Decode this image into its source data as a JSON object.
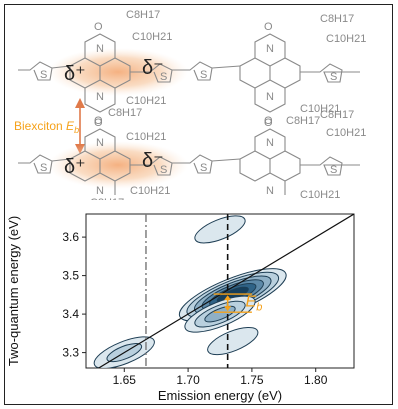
{
  "figure": {
    "top_panel": {
      "charge_plus": "δ⁺",
      "charge_minus": "δ⁻",
      "biexciton_label": "Biexciton",
      "biexciton_symbol": "E",
      "biexciton_subscript": "b",
      "chain_labels": [
        "C8H17",
        "C10H21"
      ],
      "atom_labels": [
        "O",
        "N",
        "S"
      ]
    },
    "colors": {
      "accent_orange": "#f5a21b",
      "backbone_gray": "#8a8a8a",
      "contour_dark": "#1f4f6e",
      "contour_light": "#dbe7ee"
    }
  },
  "chart_data": {
    "type": "contour",
    "xlabel": "Emission energy (eV)",
    "ylabel": "Two-quantum energy (eV)",
    "xlim": [
      1.62,
      1.83
    ],
    "ylim": [
      3.26,
      3.66
    ],
    "x_ticks": [
      "1.65",
      "1.70",
      "1.75",
      "1.80"
    ],
    "y_ticks": [
      "3.3",
      "3.4",
      "3.5",
      "3.6"
    ],
    "vertical_lines": [
      {
        "x": 1.667,
        "style": "dash-dot"
      },
      {
        "x": 1.731,
        "style": "dashed"
      }
    ],
    "diagonal": {
      "from": [
        1.62,
        3.24
      ],
      "to": [
        1.83,
        3.66
      ]
    },
    "peaks": [
      {
        "x": 1.735,
        "y": 3.45,
        "amplitude": 1.0
      },
      {
        "x": 1.725,
        "y": 3.4,
        "amplitude": 0.45
      },
      {
        "x": 1.65,
        "y": 3.3,
        "amplitude": 0.3
      },
      {
        "x": 1.735,
        "y": 3.33,
        "amplitude": 0.15
      },
      {
        "x": 1.725,
        "y": 3.62,
        "amplitude": 0.15
      }
    ],
    "annotation": {
      "symbol": "E",
      "subscript": "b",
      "x": 1.745,
      "y": 3.43
    }
  }
}
